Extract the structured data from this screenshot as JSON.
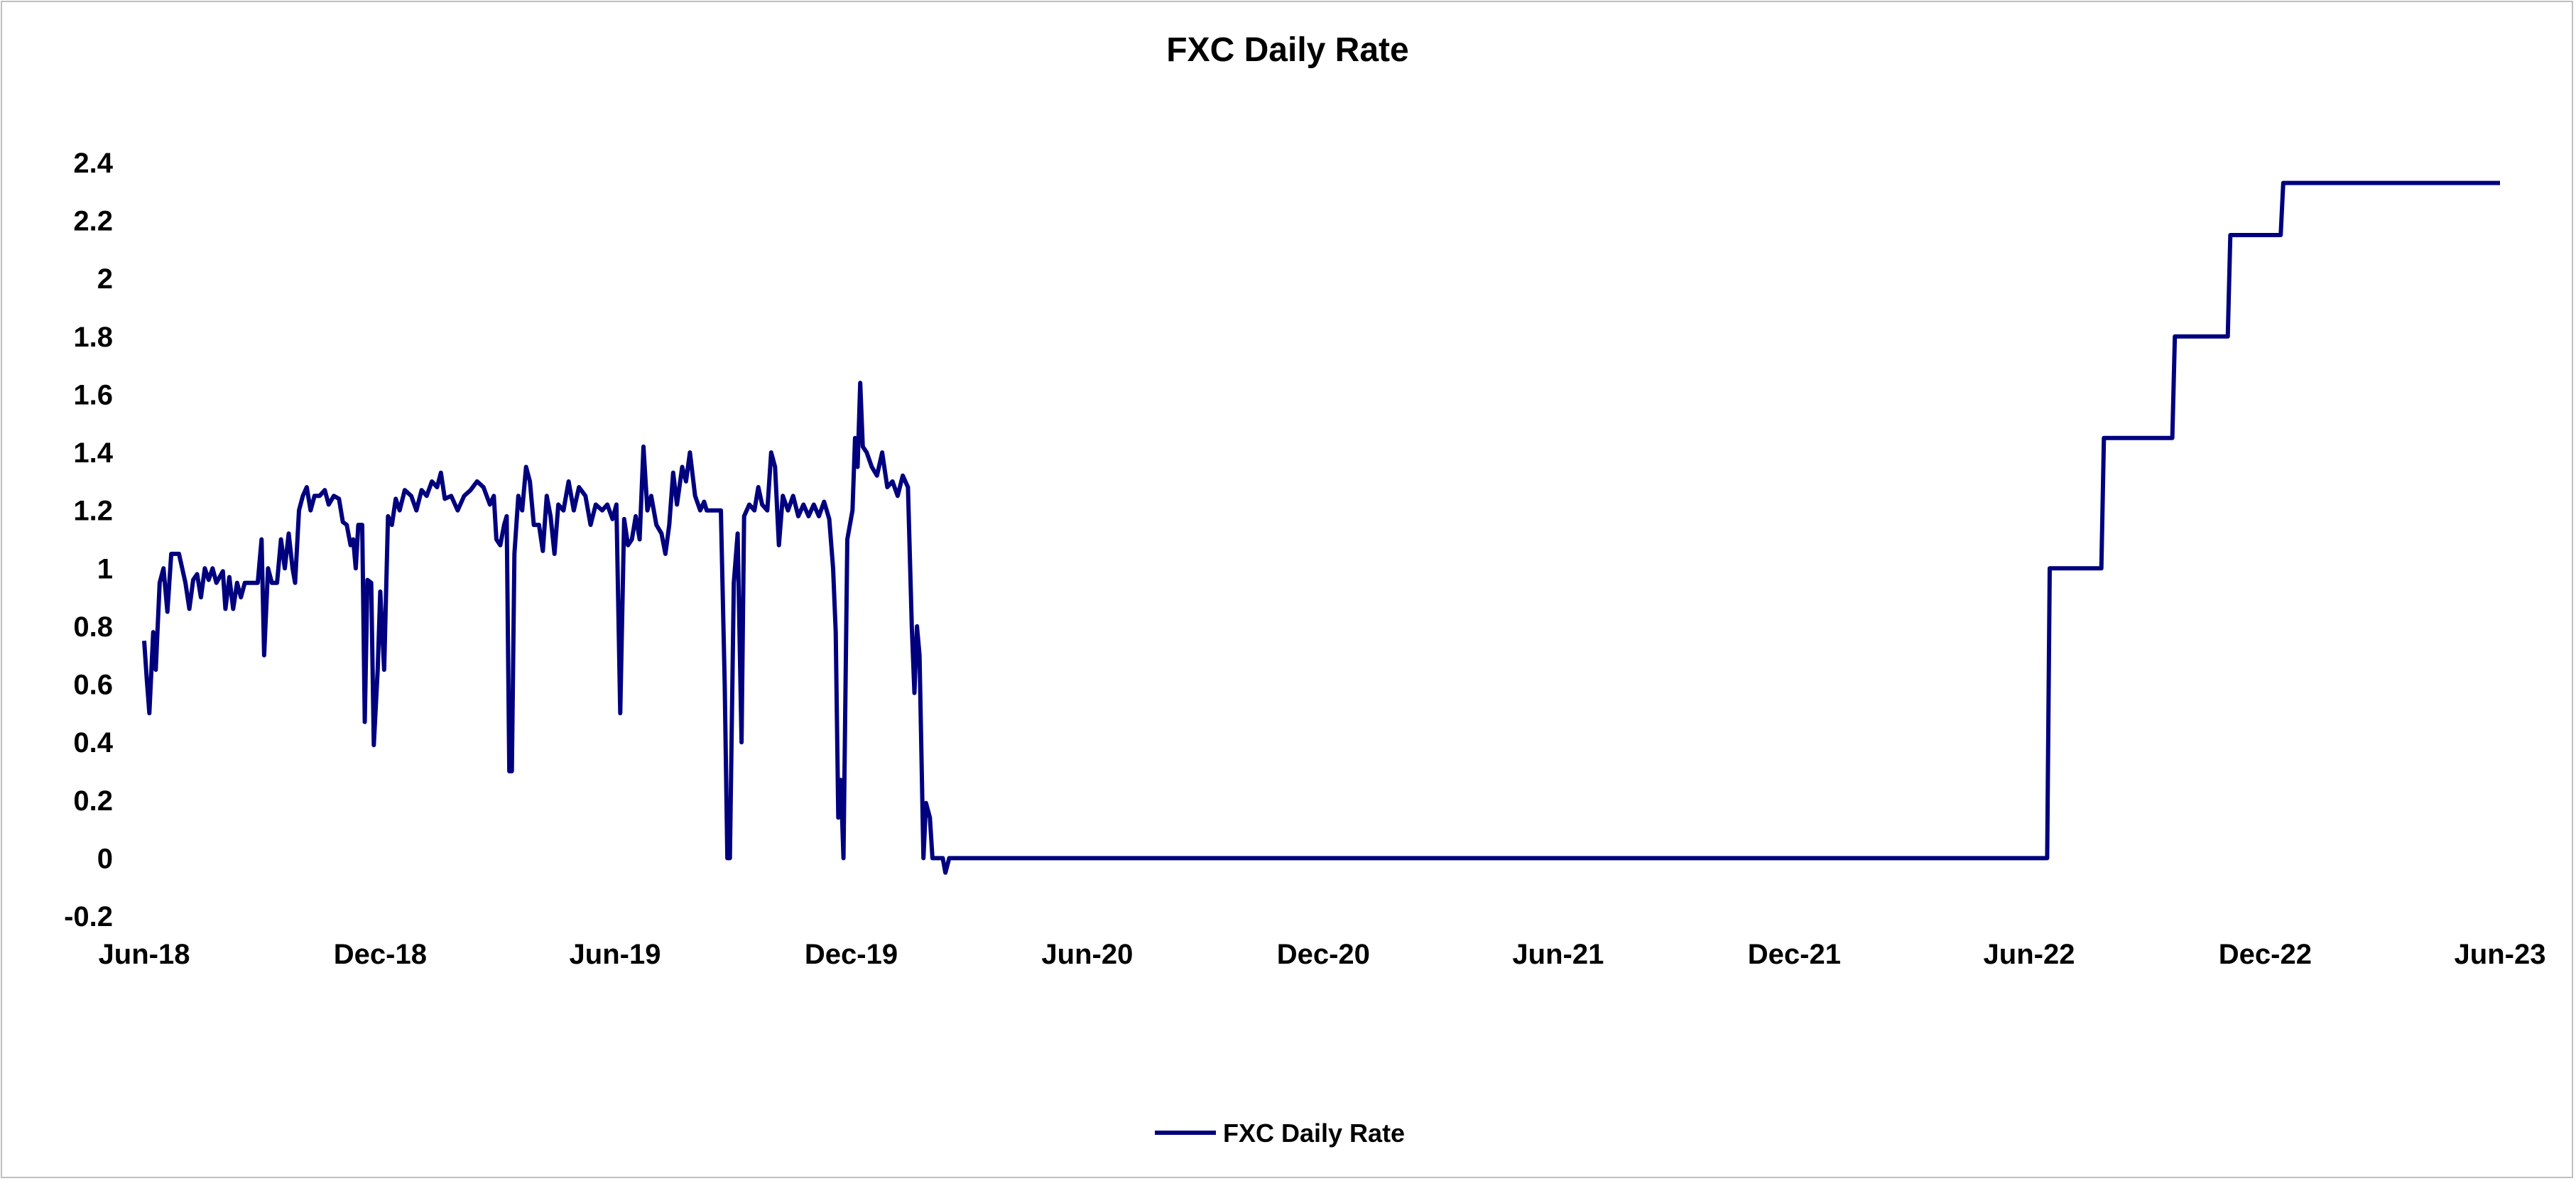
{
  "chart_data": {
    "type": "line",
    "title": "FXC Daily Rate",
    "xlabel": "",
    "ylabel": "",
    "x_range": [
      "2018-06-01",
      "2023-06-01"
    ],
    "ylim": [
      -0.2,
      2.4
    ],
    "y_ticks": [
      "2.4",
      "2.2",
      "2",
      "1.8",
      "1.6",
      "1.4",
      "1.2",
      "1",
      "0.8",
      "0.6",
      "0.4",
      "0.2",
      "0",
      "-0.2"
    ],
    "y_tick_values": [
      2.4,
      2.2,
      2.0,
      1.8,
      1.6,
      1.4,
      1.2,
      1.0,
      0.8,
      0.6,
      0.4,
      0.2,
      0,
      -0.2
    ],
    "x_ticks": [
      "Jun-18",
      "Dec-18",
      "Jun-19",
      "Dec-19",
      "Jun-20",
      "Dec-20",
      "Jun-21",
      "Dec-21",
      "Jun-22",
      "Dec-22",
      "Jun-23"
    ],
    "x_tick_dates": [
      "2018-06-01",
      "2018-12-01",
      "2019-06-01",
      "2019-12-01",
      "2020-06-01",
      "2020-12-01",
      "2021-06-01",
      "2021-12-01",
      "2022-06-01",
      "2022-12-01",
      "2023-06-01"
    ],
    "grid": false,
    "legend_position": "bottom",
    "series": [
      {
        "name": "FXC Daily Rate",
        "color": "#00007F",
        "points": [
          [
            "2018-06-01",
            0.75
          ],
          [
            "2018-06-03",
            0.62
          ],
          [
            "2018-06-05",
            0.5
          ],
          [
            "2018-06-08",
            0.78
          ],
          [
            "2018-06-10",
            0.65
          ],
          [
            "2018-06-13",
            0.95
          ],
          [
            "2018-06-16",
            1.0
          ],
          [
            "2018-06-19",
            0.85
          ],
          [
            "2018-06-22",
            1.05
          ],
          [
            "2018-06-28",
            1.05
          ],
          [
            "2018-07-03",
            0.95
          ],
          [
            "2018-07-06",
            0.86
          ],
          [
            "2018-07-09",
            0.96
          ],
          [
            "2018-07-12",
            0.98
          ],
          [
            "2018-07-15",
            0.9
          ],
          [
            "2018-07-18",
            1.0
          ],
          [
            "2018-07-21",
            0.96
          ],
          [
            "2018-07-24",
            1.0
          ],
          [
            "2018-07-27",
            0.95
          ],
          [
            "2018-08-01",
            0.99
          ],
          [
            "2018-08-03",
            0.86
          ],
          [
            "2018-08-06",
            0.97
          ],
          [
            "2018-08-09",
            0.86
          ],
          [
            "2018-08-12",
            0.95
          ],
          [
            "2018-08-15",
            0.9
          ],
          [
            "2018-08-18",
            0.95
          ],
          [
            "2018-08-28",
            0.95
          ],
          [
            "2018-08-31",
            1.1
          ],
          [
            "2018-09-02",
            0.7
          ],
          [
            "2018-09-05",
            1.0
          ],
          [
            "2018-09-08",
            0.95
          ],
          [
            "2018-09-12",
            0.95
          ],
          [
            "2018-09-15",
            1.1
          ],
          [
            "2018-09-18",
            1.0
          ],
          [
            "2018-09-21",
            1.12
          ],
          [
            "2018-09-24",
            1.0
          ],
          [
            "2018-09-26",
            0.95
          ],
          [
            "2018-09-29",
            1.2
          ],
          [
            "2018-10-02",
            1.25
          ],
          [
            "2018-10-05",
            1.28
          ],
          [
            "2018-10-08",
            1.2
          ],
          [
            "2018-10-11",
            1.25
          ],
          [
            "2018-10-15",
            1.25
          ],
          [
            "2018-10-19",
            1.27
          ],
          [
            "2018-10-22",
            1.22
          ],
          [
            "2018-10-26",
            1.25
          ],
          [
            "2018-10-30",
            1.24
          ],
          [
            "2018-11-02",
            1.16
          ],
          [
            "2018-11-05",
            1.15
          ],
          [
            "2018-11-08",
            1.08
          ],
          [
            "2018-11-10",
            1.1
          ],
          [
            "2018-11-12",
            1.0
          ],
          [
            "2018-11-14",
            1.15
          ],
          [
            "2018-11-17",
            1.15
          ],
          [
            "2018-11-19",
            0.47
          ],
          [
            "2018-11-21",
            0.96
          ],
          [
            "2018-11-24",
            0.95
          ],
          [
            "2018-11-26",
            0.39
          ],
          [
            "2018-11-29",
            0.65
          ],
          [
            "2018-12-01",
            0.92
          ],
          [
            "2018-12-04",
            0.65
          ],
          [
            "2018-12-07",
            1.18
          ],
          [
            "2018-12-10",
            1.15
          ],
          [
            "2018-12-13",
            1.24
          ],
          [
            "2018-12-16",
            1.2
          ],
          [
            "2018-12-20",
            1.27
          ],
          [
            "2018-12-25",
            1.25
          ],
          [
            "2018-12-29",
            1.2
          ],
          [
            "2019-01-02",
            1.27
          ],
          [
            "2019-01-06",
            1.25
          ],
          [
            "2019-01-10",
            1.3
          ],
          [
            "2019-01-14",
            1.28
          ],
          [
            "2019-01-17",
            1.33
          ],
          [
            "2019-01-20",
            1.24
          ],
          [
            "2019-01-25",
            1.25
          ],
          [
            "2019-01-30",
            1.2
          ],
          [
            "2019-02-04",
            1.25
          ],
          [
            "2019-02-09",
            1.27
          ],
          [
            "2019-02-14",
            1.3
          ],
          [
            "2019-02-19",
            1.28
          ],
          [
            "2019-02-24",
            1.22
          ],
          [
            "2019-02-27",
            1.25
          ],
          [
            "2019-03-01",
            1.1
          ],
          [
            "2019-03-04",
            1.08
          ],
          [
            "2019-03-07",
            1.15
          ],
          [
            "2019-03-09",
            1.18
          ],
          [
            "2019-03-11",
            0.3
          ],
          [
            "2019-03-13",
            0.3
          ],
          [
            "2019-03-15",
            1.05
          ],
          [
            "2019-03-18",
            1.25
          ],
          [
            "2019-03-21",
            1.2
          ],
          [
            "2019-03-24",
            1.35
          ],
          [
            "2019-03-27",
            1.3
          ],
          [
            "2019-03-30",
            1.15
          ],
          [
            "2019-04-03",
            1.15
          ],
          [
            "2019-04-06",
            1.06
          ],
          [
            "2019-04-09",
            1.25
          ],
          [
            "2019-04-12",
            1.18
          ],
          [
            "2019-04-15",
            1.05
          ],
          [
            "2019-04-18",
            1.22
          ],
          [
            "2019-04-22",
            1.2
          ],
          [
            "2019-04-26",
            1.3
          ],
          [
            "2019-04-30",
            1.2
          ],
          [
            "2019-05-04",
            1.28
          ],
          [
            "2019-05-09",
            1.25
          ],
          [
            "2019-05-13",
            1.15
          ],
          [
            "2019-05-17",
            1.22
          ],
          [
            "2019-05-22",
            1.2
          ],
          [
            "2019-05-26",
            1.22
          ],
          [
            "2019-05-30",
            1.17
          ],
          [
            "2019-06-02",
            1.22
          ],
          [
            "2019-06-05",
            0.5
          ],
          [
            "2019-06-08",
            1.17
          ],
          [
            "2019-06-11",
            1.08
          ],
          [
            "2019-06-14",
            1.1
          ],
          [
            "2019-06-17",
            1.18
          ],
          [
            "2019-06-20",
            1.1
          ],
          [
            "2019-06-23",
            1.42
          ],
          [
            "2019-06-26",
            1.2
          ],
          [
            "2019-06-29",
            1.25
          ],
          [
            "2019-07-03",
            1.15
          ],
          [
            "2019-07-07",
            1.12
          ],
          [
            "2019-07-10",
            1.05
          ],
          [
            "2019-07-13",
            1.15
          ],
          [
            "2019-07-16",
            1.33
          ],
          [
            "2019-07-19",
            1.22
          ],
          [
            "2019-07-23",
            1.35
          ],
          [
            "2019-07-26",
            1.3
          ],
          [
            "2019-07-29",
            1.4
          ],
          [
            "2019-08-02",
            1.25
          ],
          [
            "2019-08-06",
            1.2
          ],
          [
            "2019-08-09",
            1.23
          ],
          [
            "2019-08-11",
            1.2
          ],
          [
            "2019-08-22",
            1.2
          ],
          [
            "2019-08-25",
            0.6
          ],
          [
            "2019-08-27",
            0.0
          ],
          [
            "2019-08-29",
            0.0
          ],
          [
            "2019-09-01",
            0.95
          ],
          [
            "2019-09-04",
            1.12
          ],
          [
            "2019-09-07",
            0.4
          ],
          [
            "2019-09-09",
            1.18
          ],
          [
            "2019-09-13",
            1.22
          ],
          [
            "2019-09-17",
            1.2
          ],
          [
            "2019-09-20",
            1.28
          ],
          [
            "2019-09-23",
            1.22
          ],
          [
            "2019-09-27",
            1.2
          ],
          [
            "2019-09-30",
            1.4
          ],
          [
            "2019-10-03",
            1.35
          ],
          [
            "2019-10-06",
            1.08
          ],
          [
            "2019-10-09",
            1.25
          ],
          [
            "2019-10-13",
            1.2
          ],
          [
            "2019-10-17",
            1.25
          ],
          [
            "2019-10-21",
            1.18
          ],
          [
            "2019-10-25",
            1.22
          ],
          [
            "2019-10-29",
            1.18
          ],
          [
            "2019-11-02",
            1.22
          ],
          [
            "2019-11-06",
            1.18
          ],
          [
            "2019-11-10",
            1.23
          ],
          [
            "2019-11-14",
            1.17
          ],
          [
            "2019-11-17",
            1.0
          ],
          [
            "2019-11-19",
            0.78
          ],
          [
            "2019-11-21",
            0.14
          ],
          [
            "2019-11-23",
            0.27
          ],
          [
            "2019-11-25",
            0.0
          ],
          [
            "2019-11-28",
            1.1
          ],
          [
            "2019-12-02",
            1.2
          ],
          [
            "2019-12-04",
            1.45
          ],
          [
            "2019-12-06",
            1.35
          ],
          [
            "2019-12-08",
            1.64
          ],
          [
            "2019-12-10",
            1.42
          ],
          [
            "2019-12-13",
            1.4
          ],
          [
            "2019-12-17",
            1.35
          ],
          [
            "2019-12-21",
            1.32
          ],
          [
            "2019-12-25",
            1.4
          ],
          [
            "2019-12-29",
            1.28
          ],
          [
            "2020-01-02",
            1.3
          ],
          [
            "2020-01-06",
            1.25
          ],
          [
            "2020-01-10",
            1.32
          ],
          [
            "2020-01-14",
            1.28
          ],
          [
            "2020-01-17",
            0.8
          ],
          [
            "2020-01-19",
            0.57
          ],
          [
            "2020-01-21",
            0.8
          ],
          [
            "2020-01-23",
            0.7
          ],
          [
            "2020-01-26",
            0.0
          ],
          [
            "2020-01-28",
            0.19
          ],
          [
            "2020-01-31",
            0.14
          ],
          [
            "2020-02-02",
            0.0
          ],
          [
            "2020-02-10",
            0.0
          ],
          [
            "2020-02-12",
            -0.05
          ],
          [
            "2020-02-15",
            0.0
          ],
          [
            "2022-06-01",
            0.0
          ],
          [
            "2022-06-15",
            0.0
          ],
          [
            "2022-06-17",
            1.0
          ],
          [
            "2022-07-27",
            1.0
          ],
          [
            "2022-07-29",
            1.45
          ],
          [
            "2022-09-20",
            1.45
          ],
          [
            "2022-09-22",
            1.8
          ],
          [
            "2022-11-02",
            1.8
          ],
          [
            "2022-11-04",
            2.15
          ],
          [
            "2022-12-13",
            2.15
          ],
          [
            "2022-12-15",
            2.33
          ],
          [
            "2023-06-01",
            2.33
          ]
        ]
      }
    ]
  }
}
